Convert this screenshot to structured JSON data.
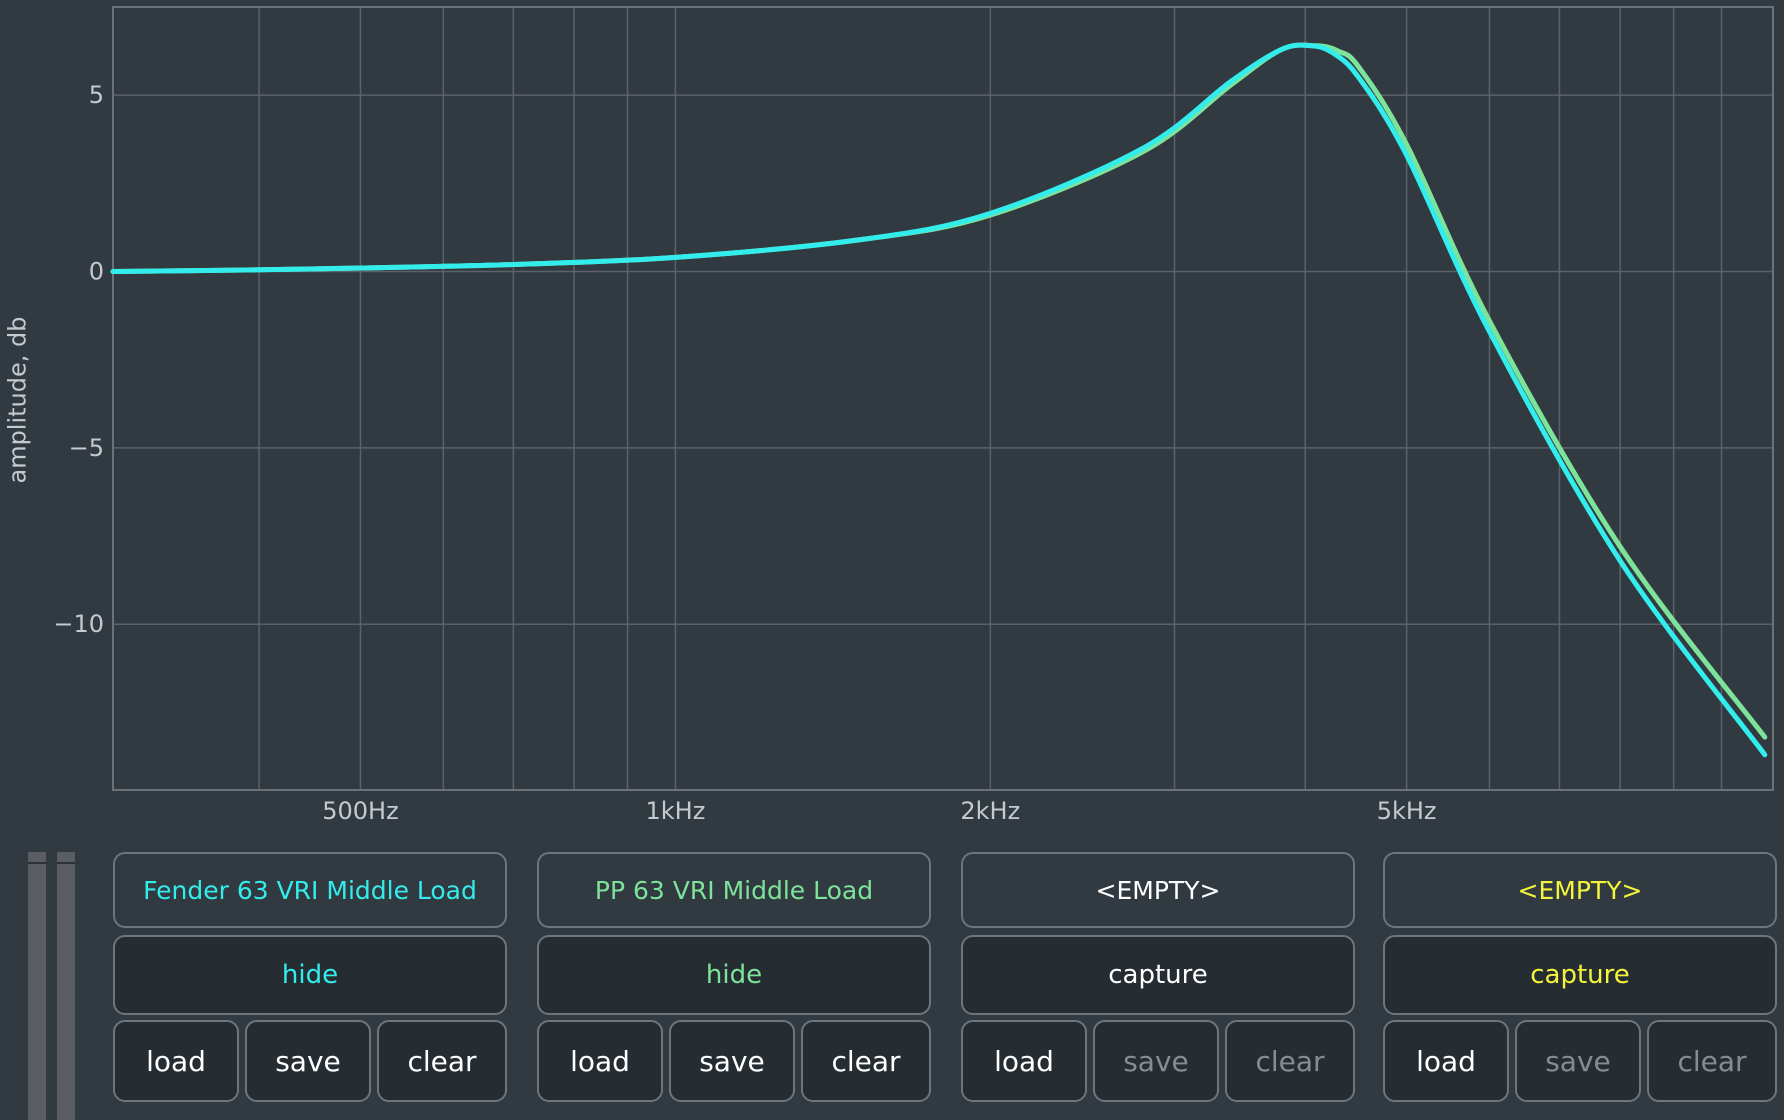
{
  "chart_data": {
    "type": "line",
    "xscale": "log",
    "xlim": [
      290,
      11200
    ],
    "ylim": [
      -14.7,
      7.5
    ],
    "ylabel": "amplitude, db",
    "x_tick_labels": [
      {
        "value": 500,
        "label": "500Hz"
      },
      {
        "value": 1000,
        "label": "1kHz"
      },
      {
        "value": 2000,
        "label": "2kHz"
      },
      {
        "value": 5000,
        "label": "5kHz"
      }
    ],
    "y_tick_labels": [
      {
        "value": 5,
        "label": "5"
      },
      {
        "value": 0,
        "label": "0"
      },
      {
        "value": -5,
        "label": "−5"
      },
      {
        "value": -10,
        "label": "−10"
      }
    ],
    "x_grid": [
      400,
      500,
      600,
      700,
      800,
      900,
      1000,
      2000,
      3000,
      4000,
      5000,
      6000,
      7000,
      8000,
      9000,
      10000
    ],
    "y_grid": [
      5,
      0,
      -5,
      -10
    ],
    "grid": true,
    "series": [
      {
        "name": "PP 63 VRI Middle Load",
        "color": "#7de39a",
        "x": [
          290,
          400,
          500,
          700,
          1000,
          1500,
          2000,
          2800,
          3400,
          3800,
          4100,
          4300,
          4500,
          5000,
          6000,
          8000,
          11000
        ],
        "y": [
          0,
          0.05,
          0.1,
          0.2,
          0.4,
          0.9,
          1.6,
          3.4,
          5.3,
          6.3,
          6.4,
          6.25,
          5.8,
          3.6,
          -1.4,
          -7.8,
          -13.2
        ]
      },
      {
        "name": "Fender 63 VRI Middle Load",
        "color": "#33ecec",
        "x": [
          290,
          400,
          500,
          700,
          1000,
          1500,
          2000,
          2800,
          3400,
          3800,
          4050,
          4250,
          4500,
          5000,
          6000,
          8000,
          11000
        ],
        "y": [
          0,
          0.05,
          0.1,
          0.2,
          0.4,
          0.9,
          1.65,
          3.5,
          5.4,
          6.3,
          6.4,
          6.2,
          5.5,
          3.3,
          -1.7,
          -8.2,
          -13.7
        ]
      }
    ]
  },
  "slots": [
    {
      "name": "Fender 63 VRI Middle Load",
      "name_color": "#33ecec",
      "action": "hide",
      "action_color": "#33ecec",
      "load": "load",
      "save": "save",
      "clear": "clear",
      "save_enabled": true,
      "clear_enabled": true
    },
    {
      "name": "PP 63 VRI Middle Load",
      "name_color": "#7de39a",
      "action": "hide",
      "action_color": "#7de39a",
      "load": "load",
      "save": "save",
      "clear": "clear",
      "save_enabled": true,
      "clear_enabled": true
    },
    {
      "name": "<EMPTY>",
      "name_color": "#ffffff",
      "action": "capture",
      "action_color": "#ffffff",
      "load": "load",
      "save": "save",
      "clear": "clear",
      "save_enabled": false,
      "clear_enabled": false
    },
    {
      "name": "<EMPTY>",
      "name_color": "#f4f43a",
      "action": "capture",
      "action_color": "#f4f43a",
      "load": "load",
      "save": "save",
      "clear": "clear",
      "save_enabled": false,
      "clear_enabled": false
    }
  ],
  "colors": {
    "background": "#313a41",
    "grid": "#5b6269",
    "button_dark": "#252d33",
    "disabled_text": "#868c91"
  }
}
